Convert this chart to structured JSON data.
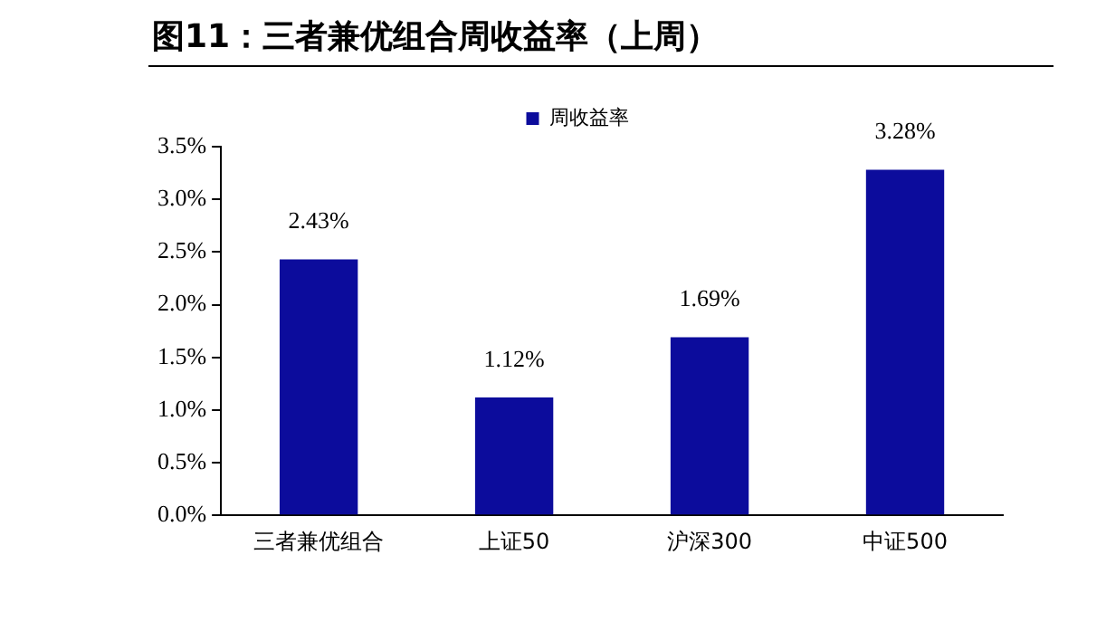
{
  "chart_data": {
    "type": "bar",
    "title": "图11：三者兼优组合周收益率（上周）",
    "categories": [
      "三者兼优组合",
      "上证50",
      "沪深300",
      "中证500"
    ],
    "series": [
      {
        "name": "周收益率",
        "color": "#0c0c9c",
        "values": [
          2.43,
          1.12,
          1.69,
          3.28
        ],
        "value_labels": [
          "2.43%",
          "1.12%",
          "1.69%",
          "3.28%"
        ]
      }
    ],
    "ylim": [
      0,
      3.5
    ],
    "yticks": [
      {
        "value": 0,
        "label": "0.0%"
      },
      {
        "value": 0.5,
        "label": "0.5%"
      },
      {
        "value": 1,
        "label": "1.0%"
      },
      {
        "value": 1.5,
        "label": "1.5%"
      },
      {
        "value": 2,
        "label": "2.0%"
      },
      {
        "value": 2.5,
        "label": "2.5%"
      },
      {
        "value": 3,
        "label": "3.0%"
      },
      {
        "value": 3.5,
        "label": "3.5%"
      }
    ],
    "grid": false,
    "legend": "top"
  }
}
